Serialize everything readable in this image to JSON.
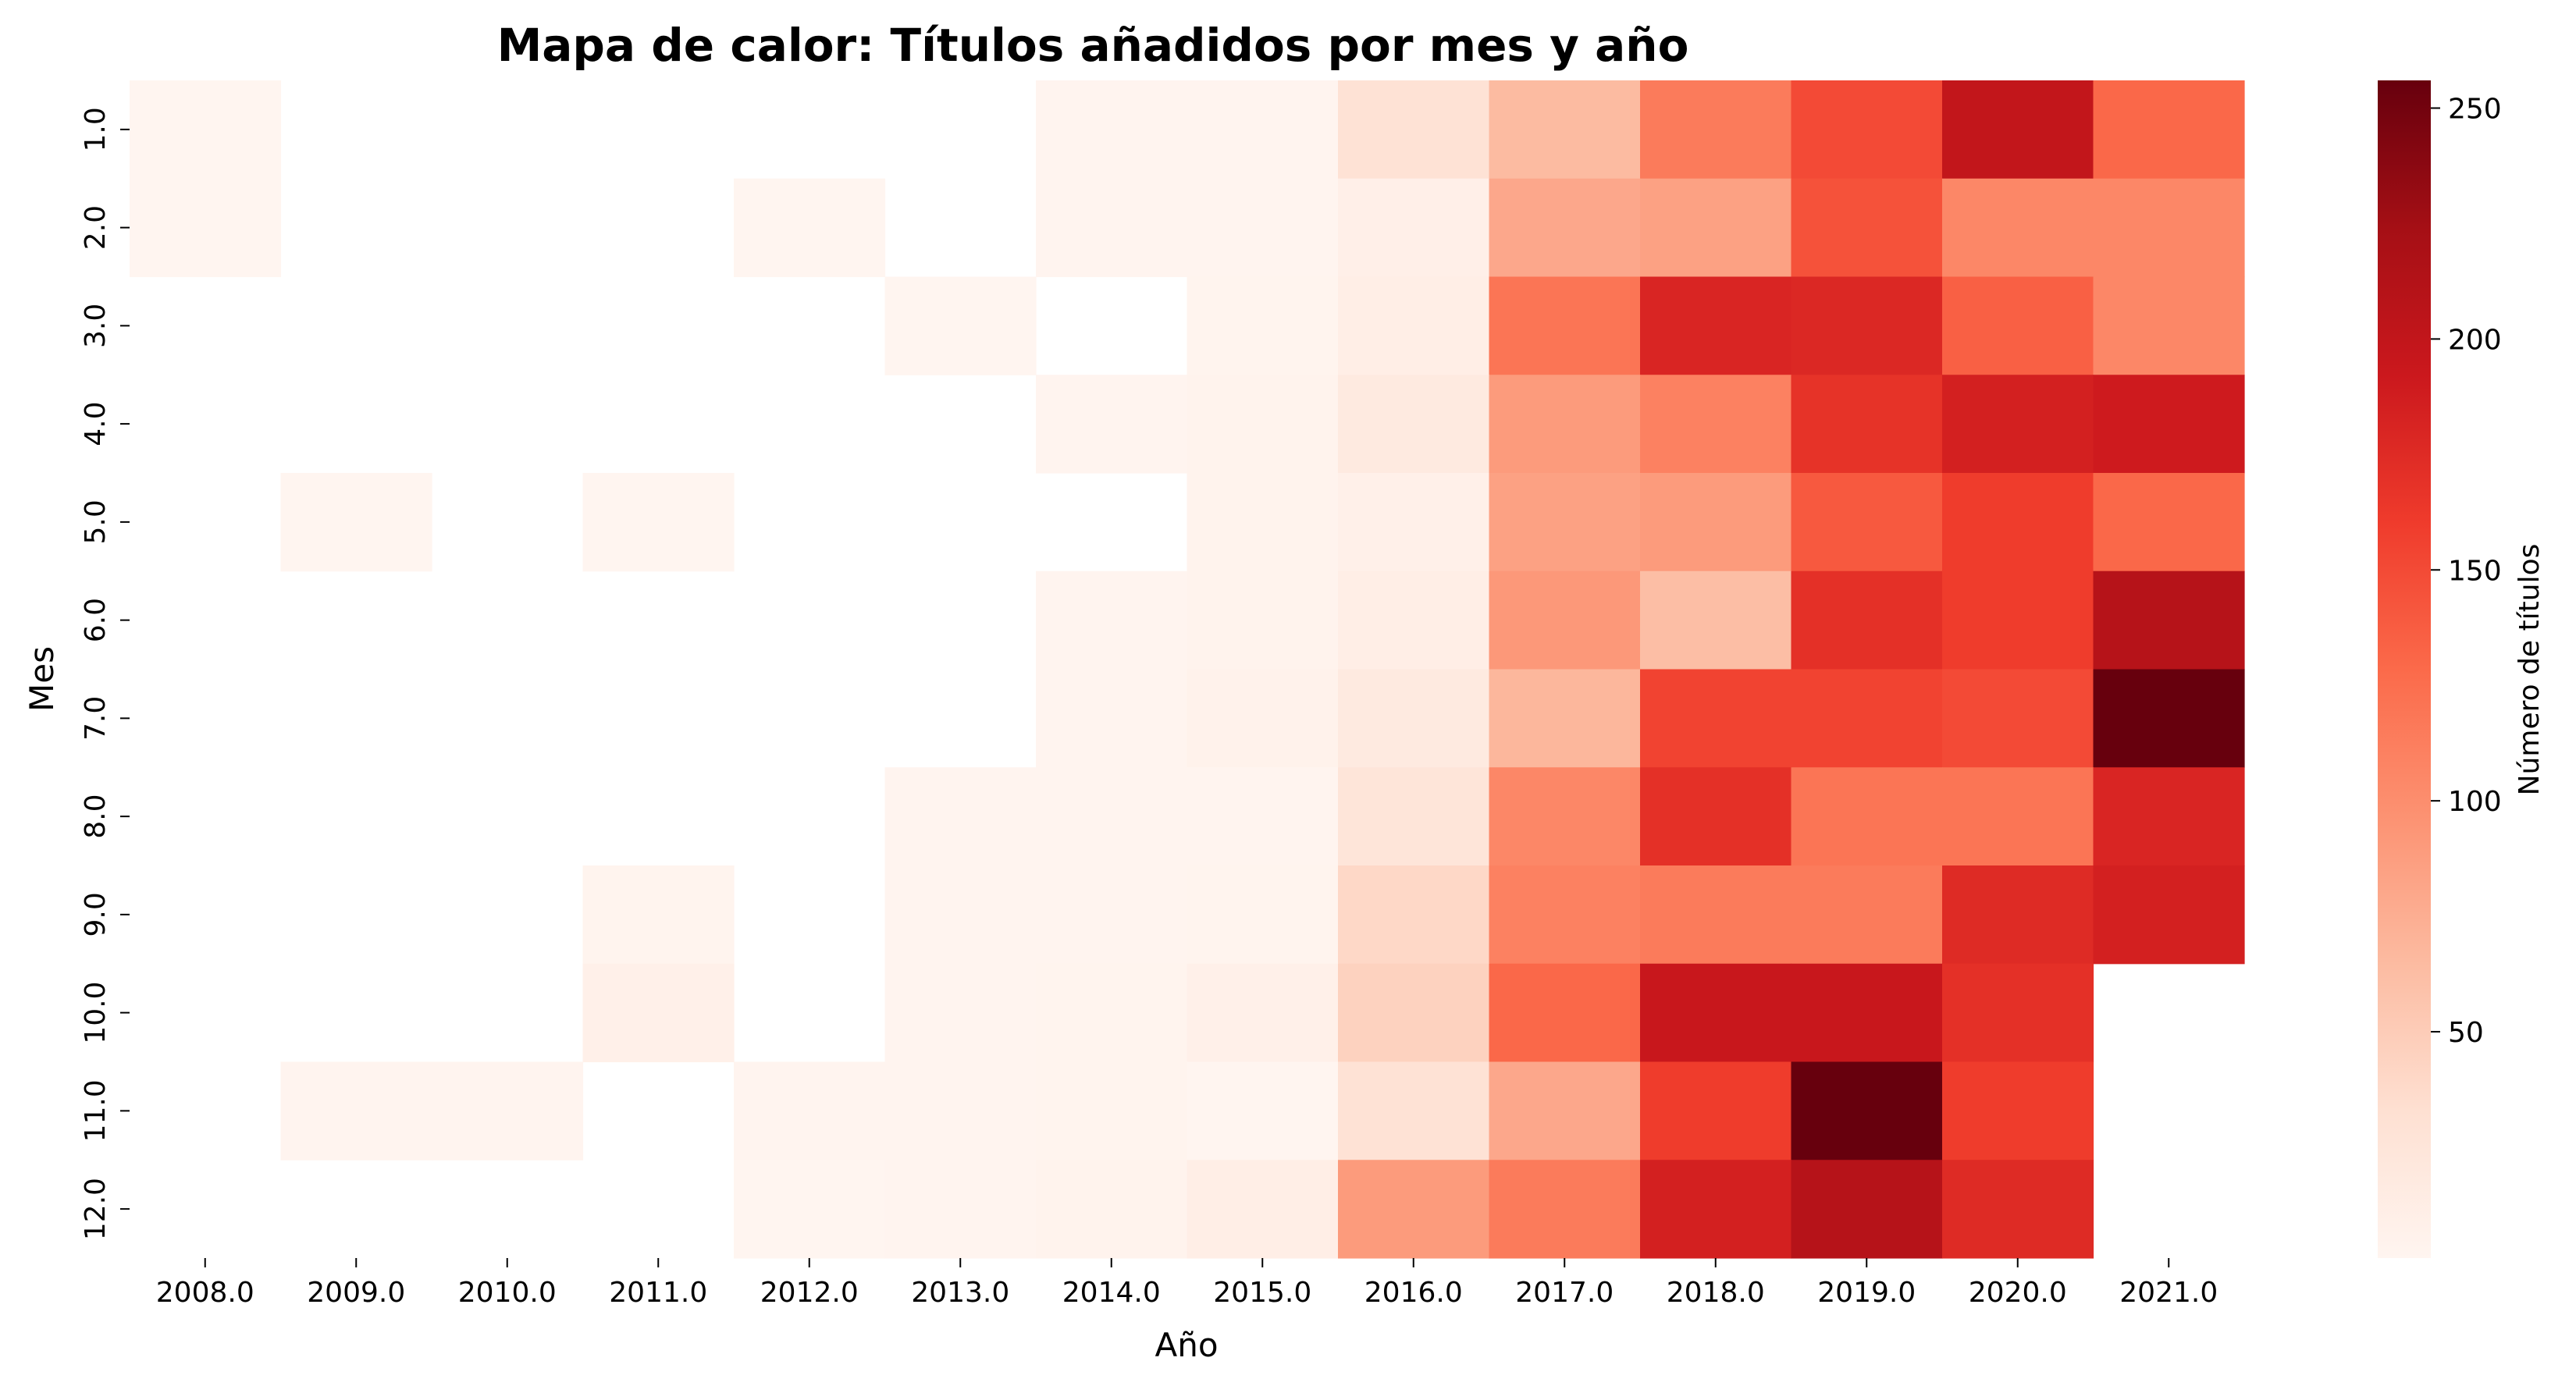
{
  "chart_data": {
    "type": "heatmap",
    "title": "Mapa de calor: Títulos añadidos por mes y año",
    "xlabel": "Año",
    "ylabel": "Mes",
    "colorbar_label": "Número de títulos",
    "colormap": "Reds",
    "colorbar_range": [
      1,
      256
    ],
    "colorbar_ticks": [
      50,
      100,
      150,
      200,
      250
    ],
    "colors": {
      "low": "#fff5f0",
      "high": "#67000d"
    },
    "x_categories": [
      "2008.0",
      "2009.0",
      "2010.0",
      "2011.0",
      "2012.0",
      "2013.0",
      "2014.0",
      "2015.0",
      "2016.0",
      "2017.0",
      "2018.0",
      "2019.0",
      "2020.0",
      "2021.0"
    ],
    "y_categories": [
      "1.0",
      "2.0",
      "3.0",
      "4.0",
      "5.0",
      "6.0",
      "7.0",
      "8.0",
      "9.0",
      "10.0",
      "11.0",
      "12.0"
    ],
    "values": [
      [
        1,
        null,
        null,
        null,
        null,
        null,
        2,
        2,
        30,
        65,
        115,
        150,
        200,
        130
      ],
      [
        1,
        null,
        null,
        null,
        1,
        null,
        2,
        2,
        10,
        80,
        85,
        145,
        105,
        105
      ],
      [
        null,
        null,
        null,
        null,
        null,
        1,
        null,
        3,
        12,
        120,
        180,
        178,
        135,
        105
      ],
      [
        null,
        null,
        null,
        null,
        null,
        null,
        2,
        4,
        18,
        90,
        110,
        168,
        185,
        190
      ],
      [
        null,
        1,
        null,
        1,
        null,
        null,
        null,
        4,
        8,
        85,
        90,
        140,
        160,
        130
      ],
      [
        null,
        null,
        null,
        null,
        null,
        null,
        2,
        4,
        12,
        92,
        62,
        170,
        160,
        210
      ],
      [
        null,
        null,
        null,
        null,
        null,
        null,
        2,
        6,
        18,
        68,
        155,
        155,
        150,
        256
      ],
      [
        null,
        null,
        null,
        null,
        null,
        2,
        2,
        2,
        25,
        105,
        170,
        120,
        120,
        180
      ],
      [
        null,
        null,
        null,
        3,
        null,
        2,
        2,
        3,
        40,
        110,
        115,
        115,
        175,
        185
      ],
      [
        null,
        null,
        null,
        8,
        null,
        2,
        3,
        8,
        45,
        130,
        195,
        195,
        170,
        null
      ],
      [
        null,
        2,
        2,
        null,
        2,
        2,
        3,
        1,
        30,
        80,
        160,
        256,
        160,
        null
      ],
      [
        null,
        null,
        null,
        null,
        1,
        2,
        4,
        12,
        90,
        115,
        185,
        210,
        175,
        null
      ]
    ]
  }
}
